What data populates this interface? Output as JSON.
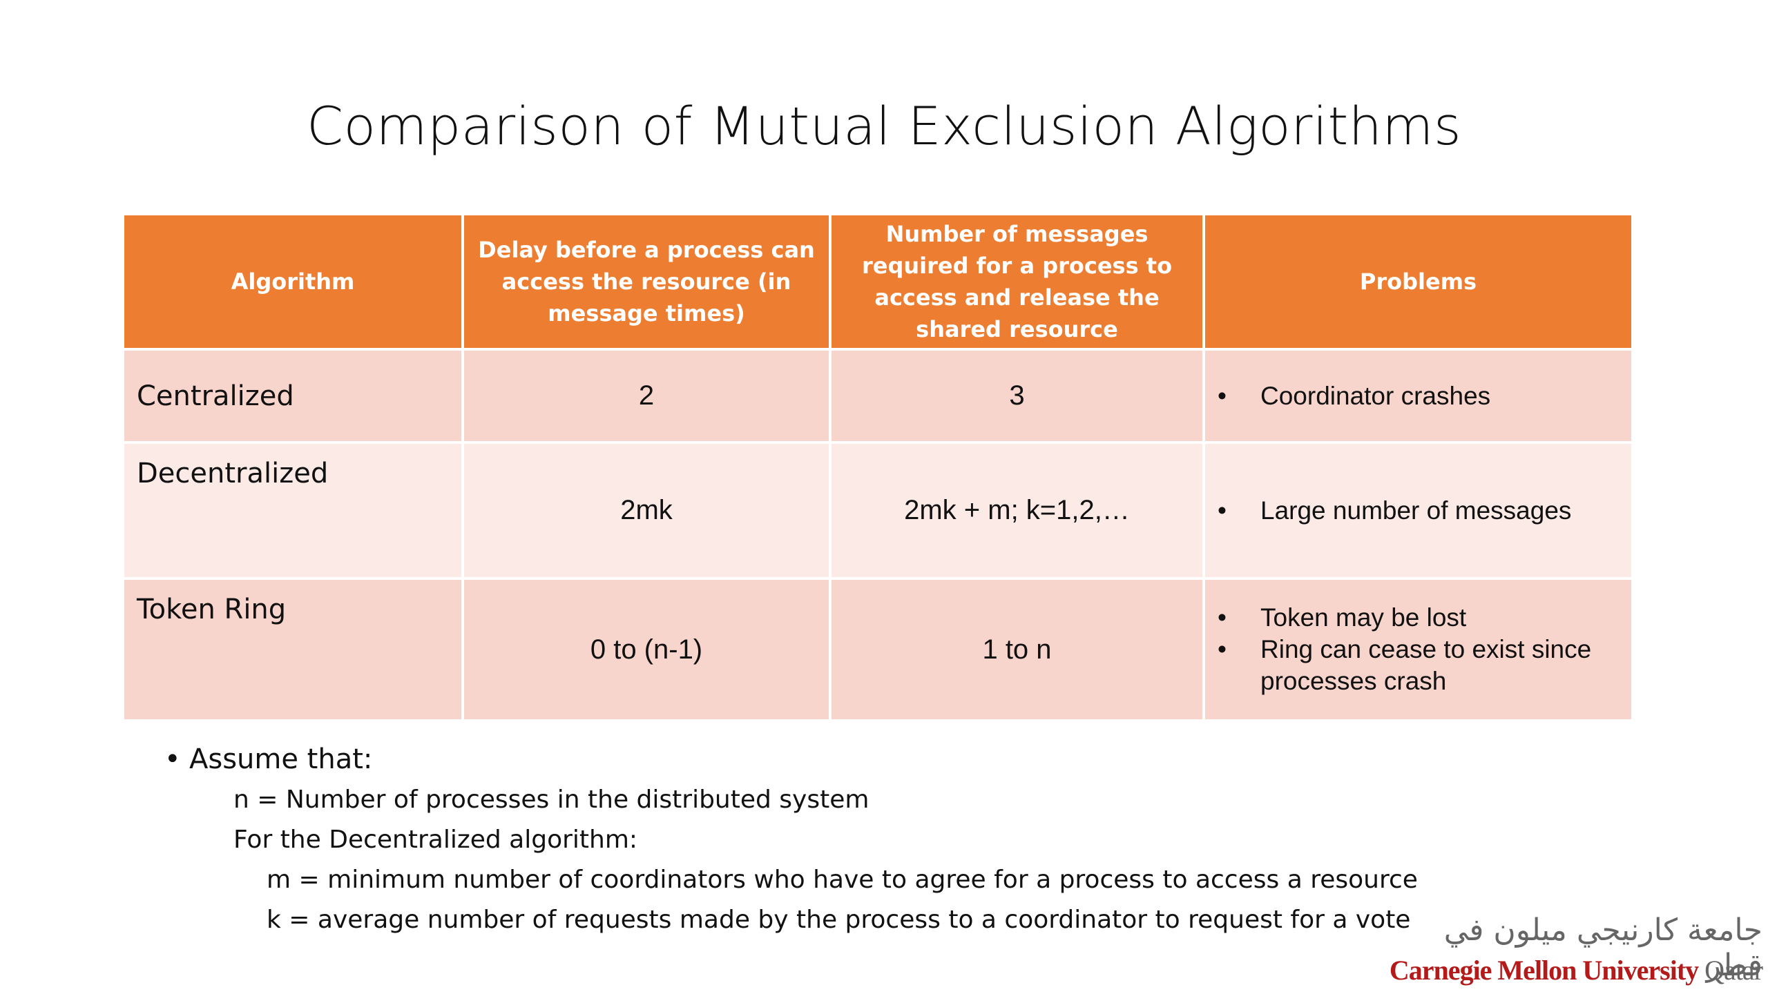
{
  "slide": {
    "title": "Comparison of Mutual Exclusion Algorithms"
  },
  "table": {
    "headers": [
      "Algorithm",
      "Delay before a process can access the resource (in message times)",
      "Number of messages required for a process to access and release the shared resource",
      "Problems"
    ],
    "rows": [
      {
        "algorithm": "Centralized",
        "delay": "2",
        "messages": "3",
        "problems": [
          "Coordinator crashes"
        ]
      },
      {
        "algorithm": "Decentralized",
        "delay": "2mk",
        "messages": "2mk + m; k=1,2,…",
        "problems": [
          "Large number of messages"
        ]
      },
      {
        "algorithm": "Token Ring",
        "delay": "0 to (n-1)",
        "messages": "1 to n",
        "problems": [
          "Token may be lost",
          "Ring can cease to exist since processes crash"
        ]
      }
    ]
  },
  "notes": {
    "assume": "Assume that:",
    "n_def": "n = Number of processes in the distributed system",
    "decentralized_intro": "For the Decentralized algorithm:",
    "m_def": "m = minimum number of coordinators who have to agree for a process to access a resource",
    "k_def": "k = average number of requests made by the process to a coordinator to request for a vote"
  },
  "logo": {
    "arabic": "جامعة كارنيجي ميلون في قطر",
    "latin_main": "Carnegie Mellon University",
    "latin_suffix": " Qatar",
    "accent_color": "#b31b1b"
  },
  "colors": {
    "header": "#ed7d31",
    "row_dark": "#f8d5cc",
    "row_light": "#fbeae6"
  }
}
